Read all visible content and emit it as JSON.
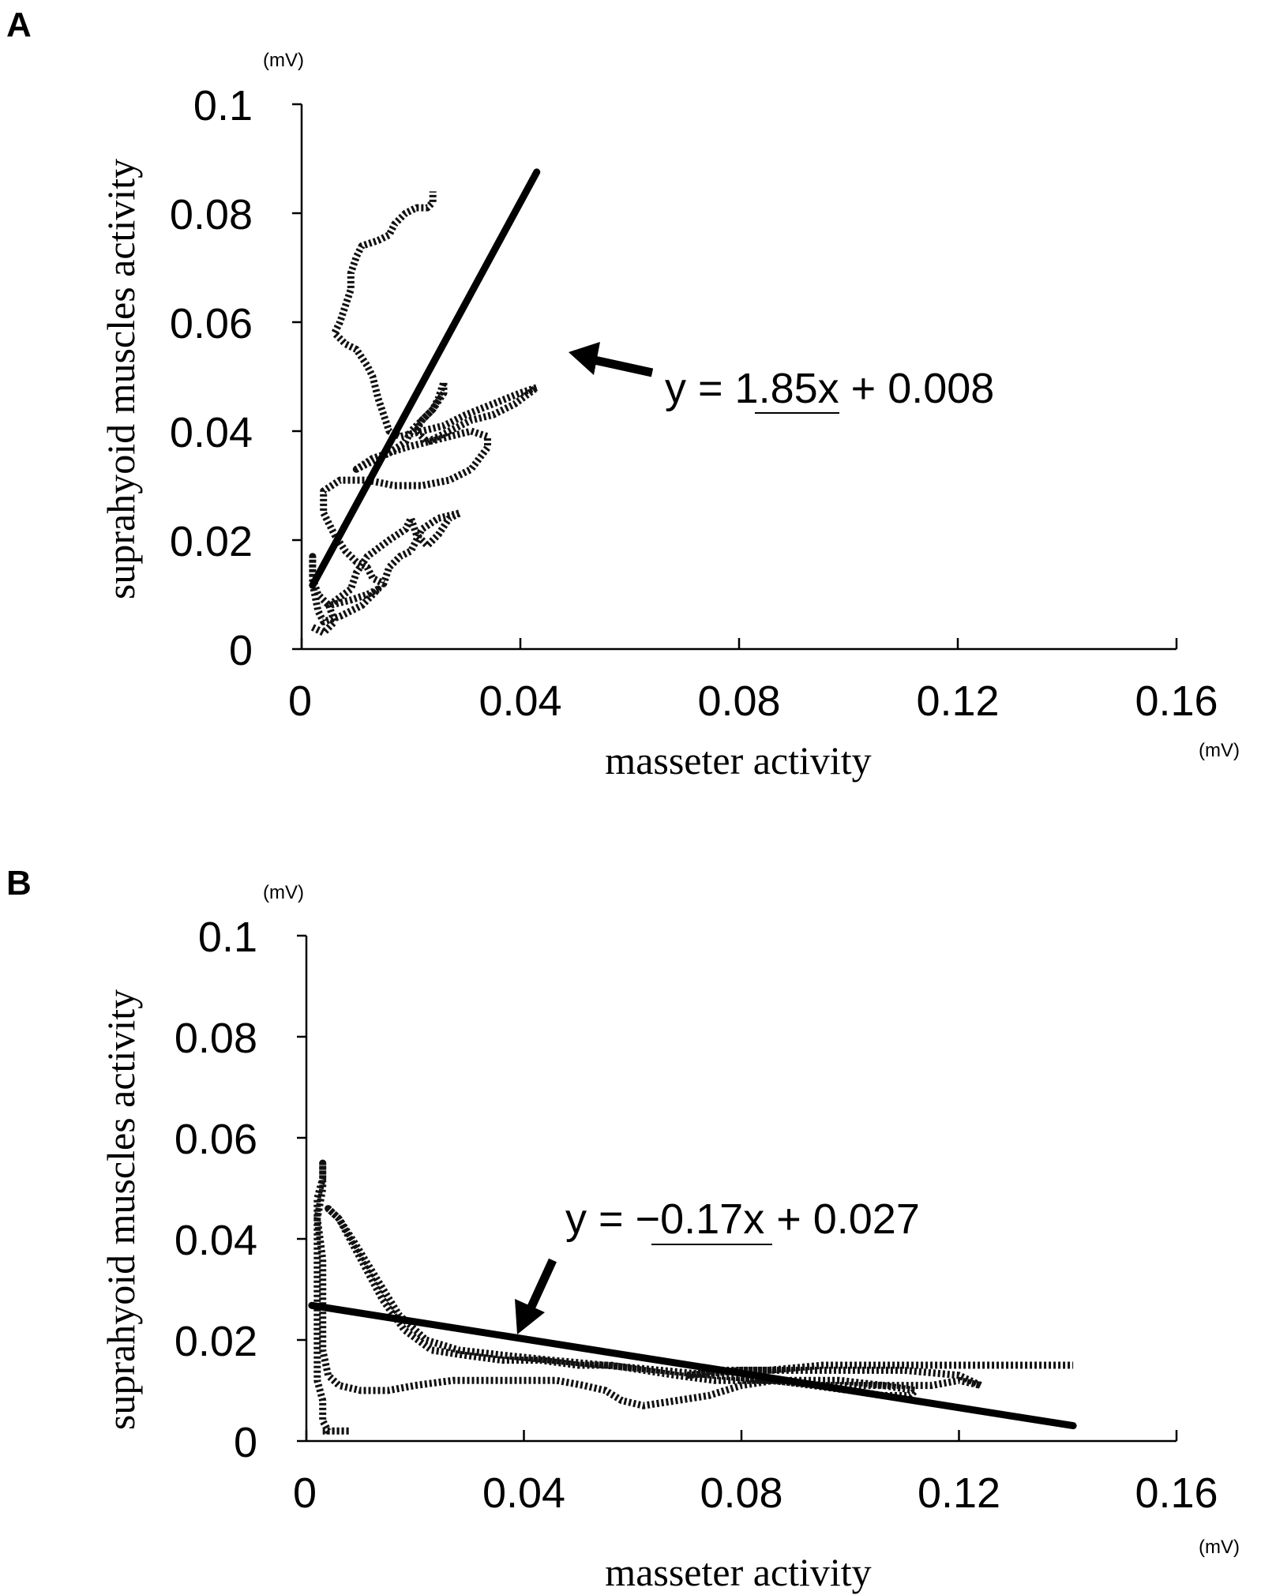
{
  "chart_data": [
    {
      "panel": "A",
      "type": "scatter",
      "xlabel": "masseter activity",
      "ylabel": "suprahyoid muscles activity",
      "x_unit": "(mV)",
      "y_unit": "(mV)",
      "xlim": [
        0,
        0.16
      ],
      "ylim": [
        0,
        0.1
      ],
      "xticks": [
        "0",
        "0.04",
        "0.08",
        "0.12",
        "0.16"
      ],
      "yticks": [
        "0",
        "0.02",
        "0.04",
        "0.06",
        "0.08",
        "0.1"
      ],
      "xtick_values": [
        0,
        0.04,
        0.08,
        0.12,
        0.16
      ],
      "ytick_values": [
        0,
        0.02,
        0.04,
        0.06,
        0.08,
        0.1
      ],
      "equation": {
        "prefix": "y = ",
        "slope": "1.85",
        "suffix": "x + 0.008"
      },
      "fit": {
        "slope": 1.85,
        "intercept": 0.008,
        "x_range": [
          0.002,
          0.043
        ]
      },
      "series": [
        {
          "name": "trajectory",
          "points": [
            [
              0.002,
              0.004
            ],
            [
              0.004,
              0.003
            ],
            [
              0.006,
              0.005
            ],
            [
              0.005,
              0.008
            ],
            [
              0.009,
              0.009
            ],
            [
              0.012,
              0.01
            ],
            [
              0.014,
              0.011
            ],
            [
              0.011,
              0.008
            ],
            [
              0.007,
              0.006
            ],
            [
              0.004,
              0.005
            ],
            [
              0.003,
              0.007
            ],
            [
              0.002,
              0.012
            ],
            [
              0.002,
              0.017
            ],
            [
              0.002,
              0.013
            ],
            [
              0.003,
              0.01
            ],
            [
              0.005,
              0.008
            ],
            [
              0.009,
              0.011
            ],
            [
              0.01,
              0.014
            ],
            [
              0.012,
              0.017
            ],
            [
              0.016,
              0.02
            ],
            [
              0.019,
              0.022
            ],
            [
              0.02,
              0.024
            ],
            [
              0.021,
              0.021
            ],
            [
              0.023,
              0.019
            ],
            [
              0.025,
              0.021
            ],
            [
              0.027,
              0.024
            ],
            [
              0.029,
              0.025
            ],
            [
              0.025,
              0.024
            ],
            [
              0.022,
              0.022
            ],
            [
              0.02,
              0.018
            ],
            [
              0.018,
              0.017
            ],
            [
              0.016,
              0.015
            ],
            [
              0.015,
              0.012
            ],
            [
              0.013,
              0.013
            ],
            [
              0.012,
              0.015
            ],
            [
              0.01,
              0.016
            ],
            [
              0.008,
              0.018
            ],
            [
              0.006,
              0.021
            ],
            [
              0.004,
              0.025
            ],
            [
              0.004,
              0.029
            ],
            [
              0.007,
              0.031
            ],
            [
              0.012,
              0.031
            ],
            [
              0.017,
              0.03
            ],
            [
              0.022,
              0.03
            ],
            [
              0.027,
              0.031
            ],
            [
              0.031,
              0.033
            ],
            [
              0.034,
              0.037
            ],
            [
              0.034,
              0.039
            ],
            [
              0.031,
              0.04
            ],
            [
              0.027,
              0.039
            ],
            [
              0.023,
              0.038
            ],
            [
              0.019,
              0.037
            ],
            [
              0.016,
              0.036
            ],
            [
              0.013,
              0.035
            ],
            [
              0.01,
              0.033
            ],
            [
              0.012,
              0.034
            ],
            [
              0.016,
              0.036
            ],
            [
              0.019,
              0.038
            ],
            [
              0.02,
              0.04
            ],
            [
              0.022,
              0.042
            ],
            [
              0.024,
              0.044
            ],
            [
              0.026,
              0.047
            ],
            [
              0.026,
              0.049
            ],
            [
              0.025,
              0.046
            ],
            [
              0.024,
              0.044
            ],
            [
              0.022,
              0.042
            ],
            [
              0.021,
              0.04
            ],
            [
              0.023,
              0.038
            ],
            [
              0.027,
              0.04
            ],
            [
              0.031,
              0.042
            ],
            [
              0.035,
              0.043
            ],
            [
              0.039,
              0.045
            ],
            [
              0.043,
              0.048
            ],
            [
              0.04,
              0.047
            ],
            [
              0.035,
              0.045
            ],
            [
              0.03,
              0.043
            ],
            [
              0.026,
              0.041
            ],
            [
              0.022,
              0.04
            ],
            [
              0.018,
              0.039
            ],
            [
              0.016,
              0.04
            ],
            [
              0.015,
              0.043
            ],
            [
              0.014,
              0.046
            ],
            [
              0.013,
              0.05
            ],
            [
              0.012,
              0.052
            ],
            [
              0.01,
              0.055
            ],
            [
              0.008,
              0.056
            ],
            [
              0.006,
              0.058
            ],
            [
              0.007,
              0.06
            ],
            [
              0.008,
              0.063
            ],
            [
              0.009,
              0.066
            ],
            [
              0.009,
              0.069
            ],
            [
              0.01,
              0.072
            ],
            [
              0.011,
              0.074
            ],
            [
              0.014,
              0.075
            ],
            [
              0.016,
              0.076
            ],
            [
              0.017,
              0.078
            ],
            [
              0.019,
              0.08
            ],
            [
              0.021,
              0.081
            ],
            [
              0.023,
              0.081
            ],
            [
              0.024,
              0.082
            ],
            [
              0.024,
              0.084
            ]
          ]
        }
      ]
    },
    {
      "panel": "B",
      "type": "scatter",
      "xlabel": "masseter activity",
      "ylabel": "suprahyoid muscles activity",
      "x_unit": "(mV)",
      "y_unit": "(mV)",
      "xlim": [
        0,
        0.16
      ],
      "ylim": [
        0,
        0.1
      ],
      "xticks": [
        "0",
        "0.04",
        "0.08",
        "0.12",
        "0.16"
      ],
      "yticks": [
        "0",
        "0.02",
        "0.04",
        "0.06",
        "0.08",
        "0.1"
      ],
      "xtick_values": [
        0,
        0.04,
        0.08,
        0.12,
        0.16
      ],
      "ytick_values": [
        0,
        0.02,
        0.04,
        0.06,
        0.08,
        0.1
      ],
      "equation": {
        "prefix": "y = ",
        "slope": "−0.17",
        "suffix": "x + 0.027"
      },
      "fit": {
        "slope": -0.17,
        "intercept": 0.027,
        "x_range": [
          0.001,
          0.141
        ]
      },
      "series": [
        {
          "name": "trajectory",
          "points": [
            [
              0.003,
              0.002
            ],
            [
              0.005,
              0.002
            ],
            [
              0.008,
              0.002
            ],
            [
              0.004,
              0.002
            ],
            [
              0.003,
              0.004
            ],
            [
              0.003,
              0.008
            ],
            [
              0.002,
              0.012
            ],
            [
              0.002,
              0.016
            ],
            [
              0.002,
              0.022
            ],
            [
              0.002,
              0.03
            ],
            [
              0.002,
              0.04
            ],
            [
              0.002,
              0.048
            ],
            [
              0.003,
              0.052
            ],
            [
              0.003,
              0.055
            ],
            [
              0.003,
              0.05
            ],
            [
              0.002,
              0.044
            ],
            [
              0.003,
              0.036
            ],
            [
              0.003,
              0.026
            ],
            [
              0.003,
              0.018
            ],
            [
              0.004,
              0.013
            ],
            [
              0.006,
              0.011
            ],
            [
              0.01,
              0.01
            ],
            [
              0.015,
              0.01
            ],
            [
              0.02,
              0.011
            ],
            [
              0.027,
              0.012
            ],
            [
              0.033,
              0.012
            ],
            [
              0.04,
              0.012
            ],
            [
              0.046,
              0.012
            ],
            [
              0.051,
              0.011
            ],
            [
              0.055,
              0.01
            ],
            [
              0.058,
              0.008
            ],
            [
              0.062,
              0.007
            ],
            [
              0.068,
              0.008
            ],
            [
              0.074,
              0.009
            ],
            [
              0.08,
              0.011
            ],
            [
              0.086,
              0.012
            ],
            [
              0.093,
              0.011
            ],
            [
              0.1,
              0.01
            ],
            [
              0.106,
              0.009
            ],
            [
              0.111,
              0.009
            ],
            [
              0.112,
              0.01
            ],
            [
              0.106,
              0.011
            ],
            [
              0.098,
              0.012
            ],
            [
              0.09,
              0.012
            ],
            [
              0.082,
              0.012
            ],
            [
              0.075,
              0.012
            ],
            [
              0.068,
              0.013
            ],
            [
              0.062,
              0.014
            ],
            [
              0.056,
              0.015
            ],
            [
              0.05,
              0.015
            ],
            [
              0.043,
              0.016
            ],
            [
              0.036,
              0.016
            ],
            [
              0.029,
              0.017
            ],
            [
              0.023,
              0.018
            ],
            [
              0.018,
              0.022
            ],
            [
              0.014,
              0.028
            ],
            [
              0.011,
              0.034
            ],
            [
              0.008,
              0.04
            ],
            [
              0.006,
              0.044
            ],
            [
              0.004,
              0.046
            ],
            [
              0.006,
              0.044
            ],
            [
              0.009,
              0.039
            ],
            [
              0.013,
              0.032
            ],
            [
              0.017,
              0.025
            ],
            [
              0.022,
              0.02
            ],
            [
              0.028,
              0.018
            ],
            [
              0.036,
              0.017
            ],
            [
              0.045,
              0.016
            ],
            [
              0.055,
              0.015
            ],
            [
              0.065,
              0.014
            ],
            [
              0.075,
              0.013
            ],
            [
              0.085,
              0.012
            ],
            [
              0.095,
              0.011
            ],
            [
              0.105,
              0.011
            ],
            [
              0.115,
              0.011
            ],
            [
              0.12,
              0.012
            ],
            [
              0.124,
              0.011
            ],
            [
              0.12,
              0.013
            ],
            [
              0.11,
              0.014
            ],
            [
              0.1,
              0.014
            ],
            [
              0.09,
              0.014
            ],
            [
              0.08,
              0.014
            ],
            [
              0.07,
              0.013
            ],
            [
              0.075,
              0.014
            ],
            [
              0.085,
              0.014
            ],
            [
              0.095,
              0.015
            ],
            [
              0.105,
              0.015
            ],
            [
              0.115,
              0.015
            ],
            [
              0.125,
              0.015
            ],
            [
              0.133,
              0.015
            ],
            [
              0.141,
              0.015
            ]
          ]
        }
      ]
    }
  ]
}
